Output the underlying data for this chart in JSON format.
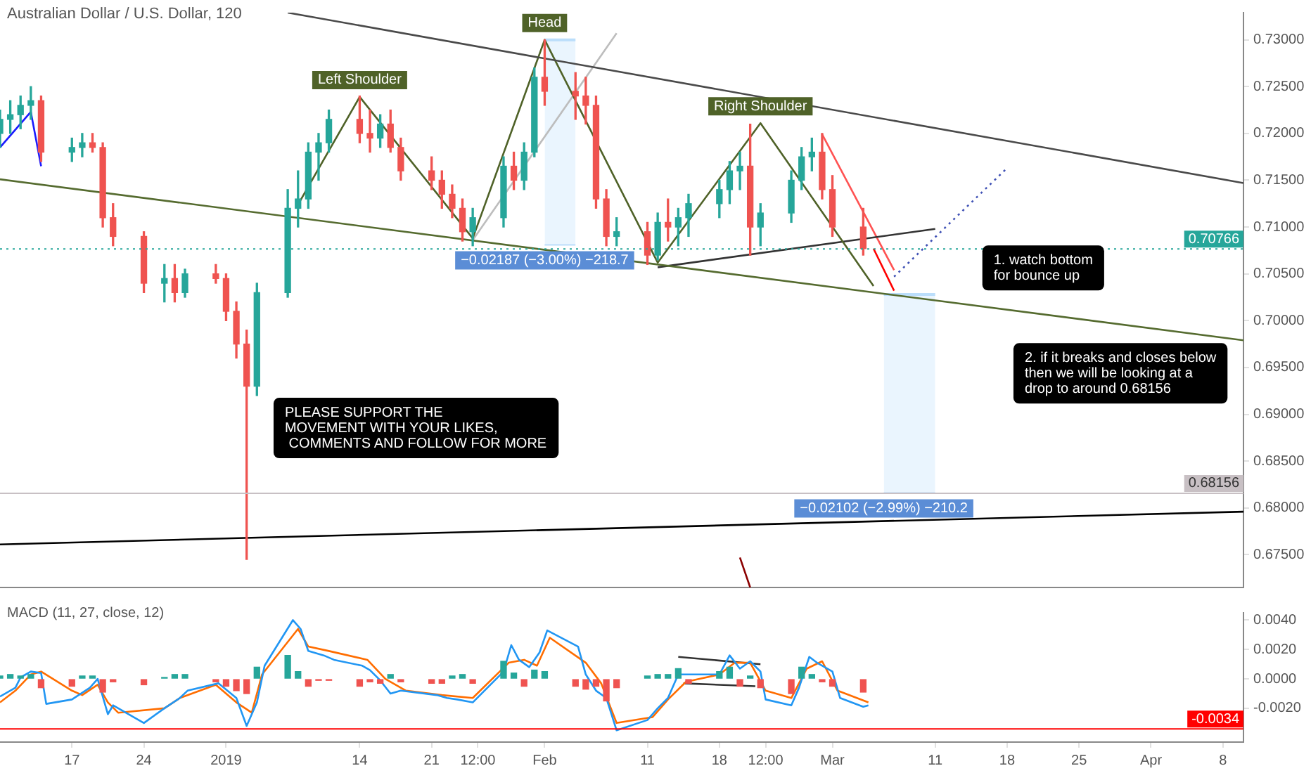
{
  "chart_data": [
    {
      "type": "candlestick",
      "title": "Australian Dollar / U.S. Dollar, 120",
      "x": [
        "2018-12-10",
        "2018-12-11",
        "2018-12-12",
        "2018-12-13",
        "2018-12-14",
        "2018-12-17",
        "2018-12-18",
        "2018-12-19",
        "2018-12-20",
        "2018-12-21",
        "2018-12-24",
        "2018-12-26",
        "2018-12-27",
        "2018-12-28",
        "2018-12-31",
        "2019-01-01",
        "2019-01-02",
        "2019-01-03",
        "2019-01-04",
        "2019-01-07",
        "2019-01-08",
        "2019-01-09",
        "2019-01-10",
        "2019-01-11",
        "2019-01-14",
        "2019-01-15",
        "2019-01-16",
        "2019-01-17",
        "2019-01-18",
        "2019-01-21",
        "2019-01-22",
        "2019-01-23",
        "2019-01-24",
        "2019-01-25",
        "2019-01-28",
        "2019-01-29",
        "2019-01-30",
        "2019-01-31",
        "2019-02-01",
        "2019-02-04",
        "2019-02-05",
        "2019-02-06",
        "2019-02-07",
        "2019-02-08",
        "2019-02-11",
        "2019-02-12",
        "2019-02-13",
        "2019-02-14",
        "2019-02-15",
        "2019-02-18",
        "2019-02-19",
        "2019-02-20",
        "2019-02-21",
        "2019-02-22",
        "2019-02-25",
        "2019-02-26",
        "2019-02-27",
        "2019-02-28",
        "2019-03-01",
        "2019-03-04"
      ],
      "ohlc": [
        [
          0.72,
          0.7225,
          0.7185,
          0.7215
        ],
        [
          0.7215,
          0.7235,
          0.72,
          0.722
        ],
        [
          0.722,
          0.724,
          0.7205,
          0.723
        ],
        [
          0.723,
          0.725,
          0.7215,
          0.7235
        ],
        [
          0.7235,
          0.724,
          0.717,
          0.718
        ],
        [
          0.718,
          0.7195,
          0.717,
          0.7185
        ],
        [
          0.7185,
          0.72,
          0.7175,
          0.719
        ],
        [
          0.719,
          0.72,
          0.718,
          0.7185
        ],
        [
          0.7185,
          0.719,
          0.71,
          0.711
        ],
        [
          0.711,
          0.7125,
          0.708,
          0.709
        ],
        [
          0.709,
          0.7095,
          0.703,
          0.704
        ],
        [
          0.704,
          0.706,
          0.702,
          0.7045
        ],
        [
          0.7045,
          0.706,
          0.702,
          0.703
        ],
        [
          0.703,
          0.7055,
          0.7025,
          0.705
        ],
        [
          0.705,
          0.706,
          0.704,
          0.7045
        ],
        [
          0.7045,
          0.705,
          0.7,
          0.701
        ],
        [
          0.701,
          0.702,
          0.696,
          0.6975
        ],
        [
          0.6975,
          0.699,
          0.6745,
          0.693
        ],
        [
          0.693,
          0.704,
          0.692,
          0.703
        ],
        [
          0.703,
          0.714,
          0.7025,
          0.712
        ],
        [
          0.712,
          0.716,
          0.71,
          0.713
        ],
        [
          0.713,
          0.719,
          0.712,
          0.718
        ],
        [
          0.718,
          0.72,
          0.715,
          0.719
        ],
        [
          0.719,
          0.7225,
          0.718,
          0.7215
        ],
        [
          0.7215,
          0.724,
          0.719,
          0.72
        ],
        [
          0.72,
          0.7225,
          0.718,
          0.7195
        ],
        [
          0.7195,
          0.722,
          0.7185,
          0.721
        ],
        [
          0.721,
          0.7225,
          0.718,
          0.7185
        ],
        [
          0.7185,
          0.7195,
          0.715,
          0.716
        ],
        [
          0.716,
          0.7175,
          0.714,
          0.715
        ],
        [
          0.715,
          0.716,
          0.712,
          0.7135
        ],
        [
          0.7135,
          0.7145,
          0.711,
          0.712
        ],
        [
          0.712,
          0.713,
          0.7085,
          0.7095
        ],
        [
          0.7095,
          0.712,
          0.708,
          0.711
        ],
        [
          0.711,
          0.7175,
          0.71,
          0.7165
        ],
        [
          0.7165,
          0.718,
          0.714,
          0.715
        ],
        [
          0.715,
          0.719,
          0.714,
          0.718
        ],
        [
          0.718,
          0.727,
          0.7175,
          0.726
        ],
        [
          0.726,
          0.73,
          0.723,
          0.7245
        ],
        [
          0.7245,
          0.7265,
          0.7215,
          0.724
        ],
        [
          0.724,
          0.726,
          0.721,
          0.723
        ],
        [
          0.723,
          0.724,
          0.712,
          0.713
        ],
        [
          0.713,
          0.714,
          0.708,
          0.709
        ],
        [
          0.709,
          0.711,
          0.708,
          0.7095
        ],
        [
          0.7095,
          0.7105,
          0.706,
          0.707
        ],
        [
          0.707,
          0.7115,
          0.7065,
          0.7105
        ],
        [
          0.7105,
          0.713,
          0.7085,
          0.71
        ],
        [
          0.71,
          0.712,
          0.708,
          0.711
        ],
        [
          0.711,
          0.7135,
          0.709,
          0.7125
        ],
        [
          0.7125,
          0.715,
          0.711,
          0.714
        ],
        [
          0.714,
          0.717,
          0.7125,
          0.716
        ],
        [
          0.716,
          0.718,
          0.714,
          0.7165
        ],
        [
          0.7165,
          0.721,
          0.707,
          0.71
        ],
        [
          0.71,
          0.7125,
          0.708,
          0.7115
        ],
        [
          0.7115,
          0.716,
          0.7105,
          0.715
        ],
        [
          0.715,
          0.7185,
          0.714,
          0.7175
        ],
        [
          0.7175,
          0.7195,
          0.716,
          0.718
        ],
        [
          0.718,
          0.72,
          0.713,
          0.714
        ],
        [
          0.714,
          0.7155,
          0.709,
          0.71
        ],
        [
          0.71,
          0.712,
          0.707,
          0.7077
        ]
      ],
      "series": [
        {
          "type": "line",
          "color": "#4a4a4a",
          "x": [
            "2019-01-07",
            "2019-04-10"
          ],
          "values": [
            0.7329,
            0.7147
          ]
        },
        {
          "type": "line",
          "color": "#556b2f",
          "x": [
            "2018-12-10",
            "2019-04-10"
          ],
          "values": [
            0.7151,
            0.6979
          ]
        },
        {
          "type": "line",
          "color": "#000000",
          "x": [
            "2018-12-10",
            "2019-04-10"
          ],
          "values": [
            0.6761,
            0.6796
          ]
        },
        {
          "type": "line",
          "color": "#4f6228",
          "x": [
            "2019-01-08",
            "2019-01-14",
            "2019-01-25",
            "2019-02-01",
            "2019-02-12",
            "2019-02-22",
            "2019-03-05"
          ],
          "values": [
            0.7124,
            0.7239,
            0.7088,
            0.73,
            0.7062,
            0.7211,
            0.7037
          ]
        },
        {
          "type": "line",
          "color": "#333333",
          "x": [
            "2019-02-12",
            "2019-03-11"
          ],
          "values": [
            0.7057,
            0.7098
          ]
        },
        {
          "type": "line",
          "color": "#bdbdbd",
          "x": [
            "2019-01-25",
            "2019-02-08"
          ],
          "values": [
            0.7086,
            0.7307
          ]
        },
        {
          "type": "line",
          "color": "#ff5252",
          "x": [
            "2019-02-28",
            "2019-03-07"
          ],
          "values": [
            0.7199,
            0.7054
          ]
        },
        {
          "type": "line",
          "color": "#ff0000",
          "x": [
            "2019-03-05",
            "2019-03-07"
          ],
          "values": [
            0.7077,
            0.7032
          ]
        },
        {
          "type": "line",
          "color": "#3f51b5",
          "line_style": "dotted",
          "x": [
            "2019-03-07",
            "2019-03-18"
          ],
          "values": [
            0.7047,
            0.7163
          ]
        },
        {
          "type": "line",
          "color": "#1a1aff",
          "x": [
            "2018-12-10",
            "2018-12-13",
            "2018-12-14"
          ],
          "values": [
            0.7185,
            0.7223,
            0.7165
          ]
        },
        {
          "type": "line",
          "color": "#8b0000",
          "x": [
            "2019-02-20",
            "2019-02-21"
          ],
          "values": [
            0.6747,
            0.6715
          ]
        },
        {
          "type": "line",
          "color": "#bbdefb",
          "x": [
            "2019-02-01",
            "2019-02-04"
          ],
          "values": [
            0.73,
            0.73
          ],
          "lower": [
            0.7081,
            0.7081
          ],
          "upper": [
            0.73,
            0.73
          ]
        },
        {
          "type": "line",
          "color": "#bbdefb",
          "x": [
            "2019-03-06",
            "2019-03-11"
          ],
          "values": [
            0.7028,
            0.7028
          ],
          "lower": [
            0.6816,
            0.6816
          ],
          "upper": [
            0.7028,
            0.7028
          ]
        }
      ],
      "xlim": [
        "2018-12-10",
        "2019-04-10"
      ],
      "ylim": [
        0.6715,
        0.7329
      ],
      "yticks": [
        {
          "value": 0.675,
          "label": "0.67500"
        },
        {
          "value": 0.68,
          "label": "0.68000"
        },
        {
          "value": 0.685,
          "label": "0.68500"
        },
        {
          "value": 0.69,
          "label": "0.69000"
        },
        {
          "value": 0.695,
          "label": "0.69500"
        },
        {
          "value": 0.7,
          "label": "0.70000"
        },
        {
          "value": 0.705,
          "label": "0.70500"
        },
        {
          "value": 0.71,
          "label": "0.71000"
        },
        {
          "value": 0.715,
          "label": "0.71500"
        },
        {
          "value": 0.72,
          "label": "0.72000"
        },
        {
          "value": 0.725,
          "label": "0.72500"
        },
        {
          "value": 0.73,
          "label": "0.73000"
        }
      ],
      "tick_labels": "y",
      "ref_lines": [
        {
          "axis": "y",
          "value": 0.70766,
          "label": "0.70766",
          "color": "#26a69a",
          "line_style": "dotted"
        },
        {
          "axis": "y",
          "value": 0.68156,
          "label": "0.68156",
          "color": "#c8c0c4"
        }
      ],
      "annotations": [
        {
          "text": "Left Shoulder",
          "x": "2019-01-14",
          "y": 0.7239
        },
        {
          "text": "Head",
          "x": "2019-02-01",
          "y": 0.73
        },
        {
          "text": "Right Shoulder",
          "x": "2019-02-22",
          "y": 0.7211
        },
        {
          "text": "−0.02187 (−3.00%) −218.7",
          "x": "2019-02-01",
          "y": 0.7081
        },
        {
          "text": "−0.02102 (−2.99%) −210.2",
          "x": "2019-03-06",
          "y": 0.6816
        },
        "1. watch bottom\nfor bounce up",
        "2. if it breaks and closes below\nthen we will be looking at a\ndrop to around 0.68156",
        "PLEASE SUPPORT THE\nMOVEMENT WITH YOUR LIKES,\n COMMENTS AND FOLLOW FOR MORE"
      ]
    },
    {
      "type": "line",
      "title": "MACD (11, 27, close, 12)",
      "x": [
        "2018-12-10",
        "2018-12-11",
        "2018-12-12",
        "2018-12-13",
        "2018-12-14",
        "2018-12-17",
        "2018-12-18",
        "2018-12-19",
        "2018-12-20",
        "2018-12-21",
        "2018-12-24",
        "2018-12-26",
        "2018-12-27",
        "2018-12-28",
        "2018-12-31",
        "2019-01-01",
        "2019-01-02",
        "2019-01-03",
        "2019-01-04",
        "2019-01-07",
        "2019-01-08",
        "2019-01-09",
        "2019-01-10",
        "2019-01-11",
        "2019-01-14",
        "2019-01-15",
        "2019-01-16",
        "2019-01-17",
        "2019-01-18",
        "2019-01-21",
        "2019-01-22",
        "2019-01-23",
        "2019-01-24",
        "2019-01-25",
        "2019-01-28",
        "2019-01-29",
        "2019-01-30",
        "2019-01-31",
        "2019-02-01",
        "2019-02-04",
        "2019-02-05",
        "2019-02-06",
        "2019-02-07",
        "2019-02-08",
        "2019-02-11",
        "2019-02-12",
        "2019-02-13",
        "2019-02-14",
        "2019-02-15",
        "2019-02-18",
        "2019-02-19",
        "2019-02-20",
        "2019-02-21",
        "2019-02-22",
        "2019-02-25",
        "2019-02-26",
        "2019-02-27",
        "2019-02-28",
        "2019-03-01",
        "2019-03-04"
      ],
      "series": [
        {
          "type": "bar",
          "values": [
            0.0002,
            0.0003,
            0.0002,
            0.0003,
            -0.0006,
            -0.0005,
            0.0002,
            0.0002,
            -0.0009,
            -0.0002,
            -0.0004,
            0.0001,
            0.0003,
            0.0003,
            -0.0002,
            -0.0005,
            -0.0008,
            -0.001,
            0.0008,
            0.0016,
            0.0005,
            -0.0005,
            -0.0001,
            -0.0001,
            -0.0005,
            -0.0002,
            -0.0003,
            0.0003,
            -0.0002,
            -0.0003,
            -0.0003,
            0.0002,
            0.0003,
            -0.0003,
            0.0012,
            0.0004,
            -0.0005,
            0.0006,
            0.0005,
            -0.0005,
            -0.0007,
            -0.0005,
            -0.0015,
            -0.0006,
            0.0002,
            0.0003,
            0.0003,
            0.0007,
            -0.0003,
            0.0005,
            0.0008,
            -0.0005,
            0.0002,
            -0.0006,
            -0.001,
            0.0008,
            0.0003,
            -0.0002,
            -0.0005,
            -0.0009
          ],
          "colors": [
            "#26a69a",
            "#26a69a",
            "#26a69a",
            "#26a69a",
            "#ef5350",
            "#ef5350",
            "#26a69a",
            "#26a69a",
            "#ef5350",
            "#ef5350",
            "#ef5350",
            "#26a69a",
            "#26a69a",
            "#26a69a",
            "#ef5350",
            "#ef5350",
            "#ef5350",
            "#ef5350",
            "#26a69a",
            "#26a69a",
            "#26a69a",
            "#ef5350",
            "#ef5350",
            "#ef5350",
            "#ef5350",
            "#ef5350",
            "#ef5350",
            "#26a69a",
            "#ef5350",
            "#ef5350",
            "#ef5350",
            "#26a69a",
            "#26a69a",
            "#ef5350",
            "#26a69a",
            "#26a69a",
            "#ef5350",
            "#26a69a",
            "#26a69a",
            "#ef5350",
            "#ef5350",
            "#ef5350",
            "#ef5350",
            "#ef5350",
            "#26a69a",
            "#26a69a",
            "#26a69a",
            "#26a69a",
            "#ef5350",
            "#26a69a",
            "#26a69a",
            "#ef5350",
            "#26a69a",
            "#ef5350",
            "#ef5350",
            "#26a69a",
            "#26a69a",
            "#ef5350",
            "#ef5350",
            "#ef5350"
          ]
        },
        {
          "type": "line",
          "color": "#2196f3",
          "x": [
            "2018-12-10",
            "2018-12-11T12:00",
            "2018-12-12",
            "2018-12-13",
            "2018-12-14",
            "2018-12-14T12:00",
            "2018-12-17",
            "2018-12-18T18:00",
            "2018-12-19T12:00",
            "2018-12-20T12:00",
            "2018-12-21",
            "2018-12-24",
            "2018-12-26",
            "2018-12-27T12:00",
            "2018-12-28T06:00",
            "2018-12-31T06:00",
            "2019-01-02",
            "2019-01-03",
            "2019-01-04",
            "2019-01-04T18:00",
            "2019-01-07T12:00",
            "2019-01-08T06:00",
            "2019-01-09",
            "2019-01-10T12:00",
            "2019-01-11T12:00",
            "2019-01-14T06:00",
            "2019-01-15",
            "2019-01-16",
            "2019-01-17",
            "2019-01-18",
            "2019-01-21T12:00",
            "2019-01-22T12:00",
            "2019-01-23T12:00",
            "2019-01-25",
            "2019-01-28",
            "2019-01-28T18:00",
            "2019-01-29T12:00",
            "2019-01-30T12:00",
            "2019-01-31T12:00",
            "2019-02-01T06:00",
            "2019-02-04T06:00",
            "2019-02-05",
            "2019-02-06",
            "2019-02-07",
            "2019-02-08",
            "2019-02-11",
            "2019-02-12",
            "2019-02-13",
            "2019-02-14",
            "2019-02-15",
            "2019-02-18",
            "2019-02-19",
            "2019-02-20",
            "2019-02-21",
            "2019-02-22",
            "2019-02-22T12:00",
            "2019-02-25",
            "2019-02-25T18:00",
            "2019-02-26T18:00",
            "2019-02-27T12:00",
            "2019-03-01",
            "2019-03-01T18:00",
            "2019-03-04",
            "2019-03-04T12:00"
          ],
          "values": [
            -0.0012,
            -0.0006,
            0.0001,
            0.0005,
            0.0004,
            -0.0017,
            -0.0014,
            -0.0006,
            0.0,
            -0.0024,
            -0.0018,
            -0.003,
            -0.002,
            -0.0013,
            -0.0008,
            -0.0003,
            -0.0013,
            -0.0032,
            -0.0016,
            0.0009,
            0.004,
            0.0034,
            0.0019,
            0.0016,
            0.0013,
            0.0009,
            0.0006,
            -0.0001,
            -0.001,
            -0.0008,
            -0.0011,
            -0.0013,
            -0.0014,
            -0.0016,
            0.0005,
            0.0023,
            0.0013,
            0.0008,
            0.0018,
            0.0033,
            0.0022,
            0.0003,
            -0.0008,
            -0.0013,
            -0.0035,
            -0.0028,
            -0.002,
            -0.0013,
            0.0003,
            0.0003,
            0.0003,
            0.0016,
            0.0007,
            0.0012,
            0.0005,
            -0.0014,
            -0.0018,
            -0.0006,
            0.0015,
            0.0011,
            0.0005,
            -0.0013,
            -0.0019,
            -0.0018
          ]
        },
        {
          "type": "line",
          "color": "#ff6d00",
          "x": [
            "2018-12-10",
            "2018-12-11T12:00",
            "2018-12-13",
            "2018-12-14",
            "2018-12-17",
            "2018-12-18",
            "2018-12-19T12:00",
            "2018-12-20T12:00",
            "2018-12-21T12:00",
            "2018-12-26",
            "2018-12-27T12:00",
            "2018-12-31",
            "2019-01-02",
            "2019-01-03T12:00",
            "2019-01-04T12:00",
            "2019-01-08",
            "2019-01-09",
            "2019-01-11",
            "2019-01-14T18:00",
            "2019-01-16T12:00",
            "2019-01-18T12:00",
            "2019-01-22",
            "2019-01-25",
            "2019-01-28T12:00",
            "2019-01-30",
            "2019-01-31T06:00",
            "2019-02-01T12:00",
            "2019-02-05",
            "2019-02-06T12:00",
            "2019-02-08",
            "2019-02-11T12:00",
            "2019-02-13",
            "2019-02-14T18:00",
            "2019-02-18",
            "2019-02-19T12:00",
            "2019-02-21",
            "2019-02-22T12:00",
            "2019-02-25",
            "2019-02-26T12:00",
            "2019-02-28",
            "2019-03-01T12:00",
            "2019-03-04T12:00"
          ],
          "values": [
            -0.0016,
            -0.0008,
            0.0003,
            0.0005,
            -0.0008,
            -0.0011,
            -0.0004,
            -0.0016,
            -0.0023,
            -0.002,
            -0.0013,
            -0.0004,
            -0.0016,
            -0.0023,
            0.0003,
            0.0034,
            0.0022,
            0.0019,
            0.0013,
            0.0,
            -0.0008,
            -0.0011,
            -0.0013,
            0.0011,
            0.0013,
            0.0009,
            0.0028,
            0.0011,
            -0.0003,
            -0.003,
            -0.0026,
            -0.0014,
            -0.0002,
            0.0003,
            0.0011,
            0.0011,
            -0.0008,
            -0.0013,
            0.0007,
            0.0012,
            -0.0008,
            -0.0016
          ]
        },
        {
          "type": "line",
          "color": "#333333",
          "x": [
            "2019-02-14",
            "2019-02-22"
          ],
          "values": [
            0.0015,
            0.001
          ]
        },
        {
          "type": "line",
          "color": "#333333",
          "x": [
            "2019-02-14T12:00",
            "2019-02-21T12:00"
          ],
          "values": [
            -0.0003,
            -0.0005
          ]
        }
      ],
      "xlim": [
        "2018-12-10",
        "2019-04-10"
      ],
      "xticks": [
        {
          "value": "2018-12-17",
          "label": "17"
        },
        {
          "value": "2018-12-24",
          "label": "24"
        },
        {
          "value": "2019",
          "label": "2019"
        },
        {
          "value": "2019-01-14",
          "label": "14"
        },
        {
          "value": "2019-01-21",
          "label": "21"
        },
        {
          "value": "2019-01-25T12:00",
          "label": "12:00"
        },
        {
          "value": "2019-02",
          "label": "Feb"
        },
        {
          "value": "2019-02-11",
          "label": "11"
        },
        {
          "value": "2019-02-18",
          "label": "18"
        },
        {
          "value": "2019-02-22T12:00",
          "label": "12:00"
        },
        {
          "value": "2019-03",
          "label": "Mar"
        },
        {
          "value": "2019-03-11",
          "label": "11"
        },
        {
          "value": "2019-03-18",
          "label": "18"
        },
        {
          "value": "2019-03-25",
          "label": "25"
        },
        {
          "value": "2019-04",
          "label": "Apr"
        },
        {
          "value": "2019-04-08",
          "label": "8"
        }
      ],
      "ylim": [
        -0.0043,
        0.0045
      ],
      "yticks": [
        {
          "value": 0.004,
          "label": "0.0040"
        },
        {
          "value": 0.002,
          "label": "0.0020"
        },
        {
          "value": 0,
          "label": "0.0000"
        },
        {
          "value": -0.002,
          "label": "-0.0020"
        }
      ],
      "ref_lines": [
        {
          "axis": "y",
          "value": -0.0034,
          "label": "-0.0034",
          "color": "#ff0000"
        }
      ]
    }
  ]
}
